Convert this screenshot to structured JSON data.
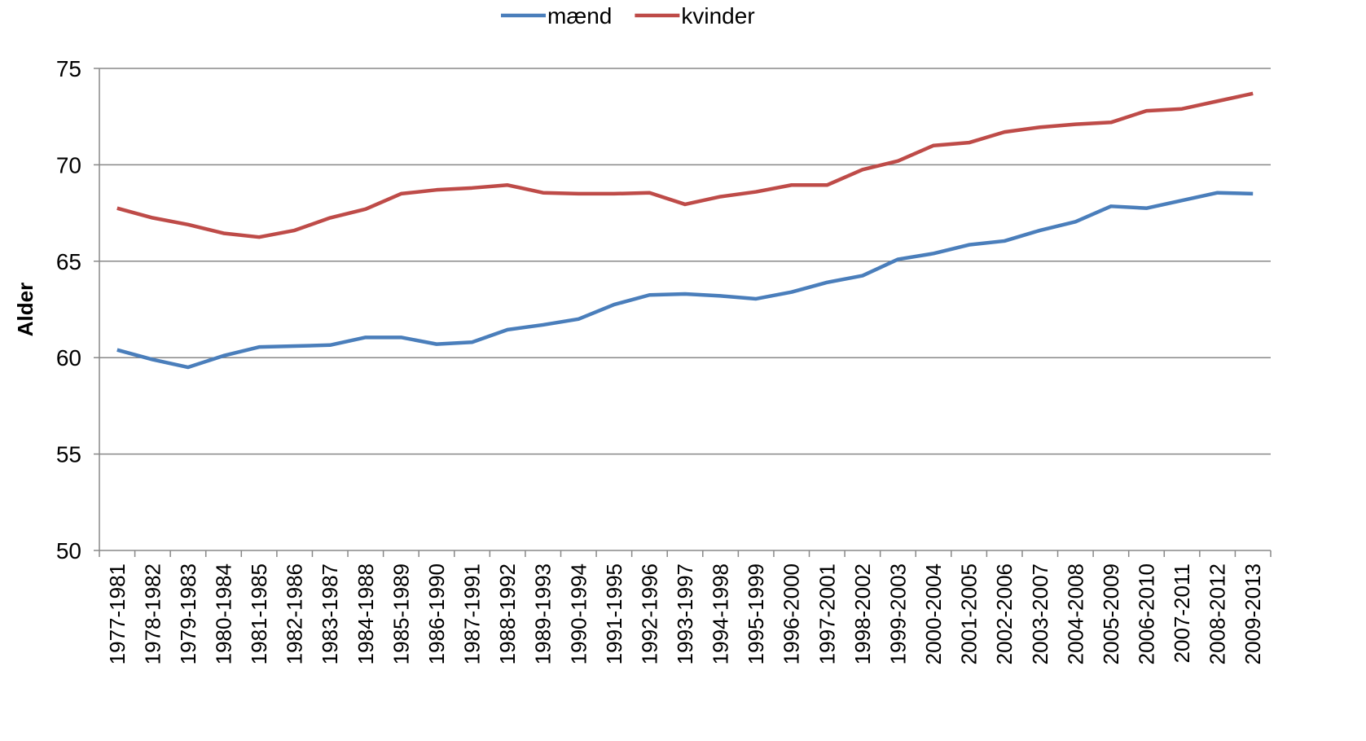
{
  "chart_data": {
    "type": "line",
    "y_label": "Alder",
    "categories": [
      "1977-1981",
      "1978-1982",
      "1979-1983",
      "1980-1984",
      "1981-1985",
      "1982-1986",
      "1983-1987",
      "1984-1988",
      "1985-1989",
      "1986-1990",
      "1987-1991",
      "1988-1992",
      "1989-1993",
      "1990-1994",
      "1991-1995",
      "1992-1996",
      "1993-1997",
      "1994-1998",
      "1995-1999",
      "1996-2000",
      "1997-2001",
      "1998-2002",
      "1999-2003",
      "2000-2004",
      "2001-2005",
      "2002-2006",
      "2003-2007",
      "2004-2008",
      "2005-2009",
      "2006-2010",
      "2007-2011",
      "2008-2012",
      "2009-2013"
    ],
    "series": [
      {
        "name": "mænd",
        "color": "#4a7ebb",
        "values": [
          60.4,
          59.9,
          59.5,
          60.1,
          60.55,
          60.6,
          60.65,
          61.05,
          61.05,
          60.7,
          60.8,
          61.45,
          61.7,
          62.0,
          62.75,
          63.25,
          63.3,
          63.2,
          63.05,
          63.4,
          63.9,
          64.25,
          65.1,
          65.4,
          65.85,
          66.05,
          66.6,
          67.05,
          67.85,
          67.75,
          68.15,
          68.55,
          68.5
        ]
      },
      {
        "name": "kvinder",
        "color": "#be4b48",
        "values": [
          67.75,
          67.25,
          66.9,
          66.45,
          66.25,
          66.6,
          67.25,
          67.7,
          68.5,
          68.7,
          68.8,
          68.95,
          68.55,
          68.5,
          68.5,
          68.55,
          67.95,
          68.35,
          68.6,
          68.95,
          68.95,
          69.75,
          70.2,
          71.0,
          71.15,
          71.7,
          71.95,
          72.1,
          72.2,
          72.8,
          72.9,
          73.3,
          73.7
        ]
      }
    ],
    "ylim": [
      50,
      75
    ],
    "yticks": [
      50,
      55,
      60,
      65,
      70,
      75
    ],
    "grid": true,
    "legend": "top"
  }
}
